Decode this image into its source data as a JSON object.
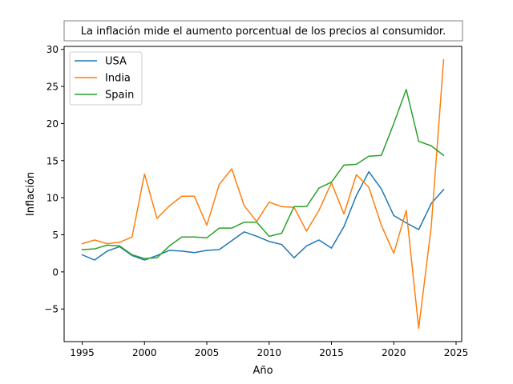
{
  "chart_data": {
    "type": "line",
    "title": "La inflación mide el aumento porcentual de los precios al consumidor.",
    "xlabel": "Año",
    "ylabel": "Inflación",
    "xlim": [
      1993.55,
      2025.45
    ],
    "ylim": [
      -9.4,
      30.4
    ],
    "xticks": [
      1995,
      2000,
      2005,
      2010,
      2015,
      2020,
      2025
    ],
    "yticks": [
      -5,
      0,
      5,
      10,
      15,
      20,
      25,
      30
    ],
    "ytick_labels": [
      "−5",
      "0",
      "5",
      "10",
      "15",
      "20",
      "25",
      "30"
    ],
    "grid": false,
    "legend_position": "top-left",
    "x": [
      1995,
      1996,
      1997,
      1998,
      1999,
      2000,
      2001,
      2002,
      2003,
      2004,
      2005,
      2006,
      2007,
      2008,
      2009,
      2010,
      2011,
      2012,
      2013,
      2014,
      2015,
      2016,
      2017,
      2018,
      2019,
      2020,
      2021,
      2022,
      2023,
      2024
    ],
    "series": [
      {
        "name": "USA",
        "color": "#1f77b4",
        "values": [
          2.3,
          1.6,
          2.8,
          3.4,
          2.2,
          1.6,
          2.2,
          2.9,
          2.8,
          2.6,
          2.9,
          3.0,
          4.2,
          5.4,
          4.8,
          4.1,
          3.7,
          1.9,
          3.5,
          4.3,
          3.2,
          6.1,
          10.3,
          13.5,
          11.2,
          7.6,
          6.6,
          5.7,
          9.2,
          11.1
        ]
      },
      {
        "name": "India",
        "color": "#ff7f0e",
        "values": [
          3.8,
          4.3,
          3.8,
          4.0,
          4.7,
          13.2,
          7.2,
          8.9,
          10.2,
          10.2,
          6.3,
          11.8,
          13.9,
          8.9,
          6.8,
          9.4,
          8.8,
          8.7,
          5.5,
          8.3,
          12.0,
          7.8,
          13.1,
          11.4,
          6.3,
          2.5,
          8.3,
          -7.6,
          6.0,
          28.6
        ]
      },
      {
        "name": "Spain",
        "color": "#2ca02c",
        "values": [
          3.0,
          3.1,
          3.6,
          3.5,
          2.3,
          1.8,
          1.9,
          3.5,
          4.7,
          4.7,
          4.6,
          5.9,
          5.9,
          6.7,
          6.7,
          4.8,
          5.2,
          8.8,
          8.8,
          11.3,
          12.1,
          14.4,
          14.5,
          15.6,
          15.7,
          20.0,
          24.6,
          17.6,
          17.0,
          15.7
        ]
      }
    ]
  }
}
